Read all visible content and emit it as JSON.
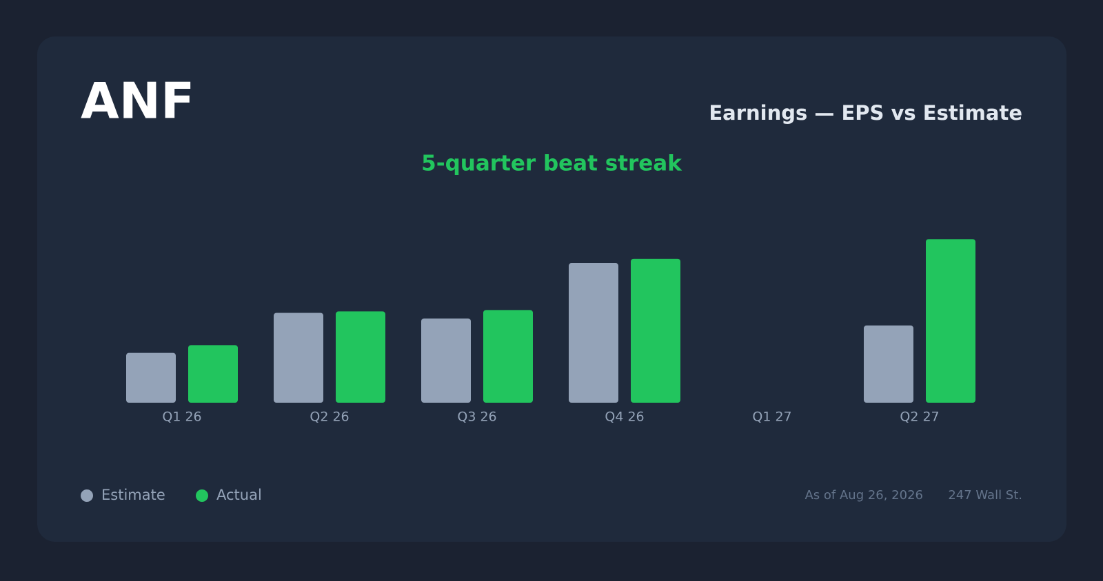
{
  "chart_data": {
    "type": "bar",
    "ticker": "ANF",
    "title": "Earnings — EPS vs Estimate",
    "subtitle": "5-quarter beat streak",
    "categories": [
      "Q1 26",
      "Q2 26",
      "Q3 26",
      "Q4 26",
      "Q1 27",
      "Q2 27"
    ],
    "series": [
      {
        "name": "Estimate",
        "color": "#94a3b8",
        "values": [
          0.71,
          1.28,
          1.2,
          1.99,
          null,
          1.1
        ]
      },
      {
        "name": "Actual",
        "color": "#22c55e",
        "values": [
          0.82,
          1.3,
          1.32,
          2.05,
          null,
          2.33
        ]
      }
    ],
    "ylim": [
      0,
      2.5
    ],
    "grid": false,
    "as_of": "As of Aug 26, 2026",
    "source": "247 Wall St."
  }
}
